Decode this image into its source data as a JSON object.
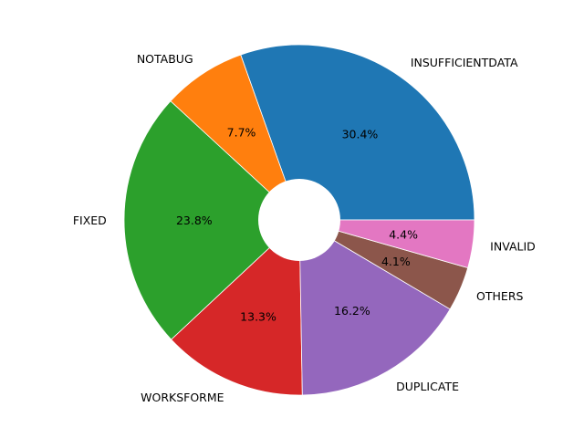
{
  "chart_data": {
    "type": "pie",
    "donut": true,
    "start_angle_deg": 0,
    "direction": "counterclockwise",
    "slices": [
      {
        "label": "INSUFFICIENTDATA",
        "value": 30.4,
        "pct_text": "30.4%",
        "color": "#1f77b4"
      },
      {
        "label": "NOTABUG",
        "value": 7.7,
        "pct_text": "7.7%",
        "color": "#ff7f0e"
      },
      {
        "label": "FIXED",
        "value": 23.8,
        "pct_text": "23.8%",
        "color": "#2ca02c"
      },
      {
        "label": "WORKSFORME",
        "value": 13.3,
        "pct_text": "13.3%",
        "color": "#d62728"
      },
      {
        "label": "DUPLICATE",
        "value": 16.2,
        "pct_text": "16.2%",
        "color": "#9467bd"
      },
      {
        "label": "OTHERS",
        "value": 4.1,
        "pct_text": "4.1%",
        "color": "#8c564b"
      },
      {
        "label": "INVALID",
        "value": 4.4,
        "pct_text": "4.4%",
        "color": "#e377c2"
      }
    ],
    "title": "",
    "legend": "none"
  }
}
